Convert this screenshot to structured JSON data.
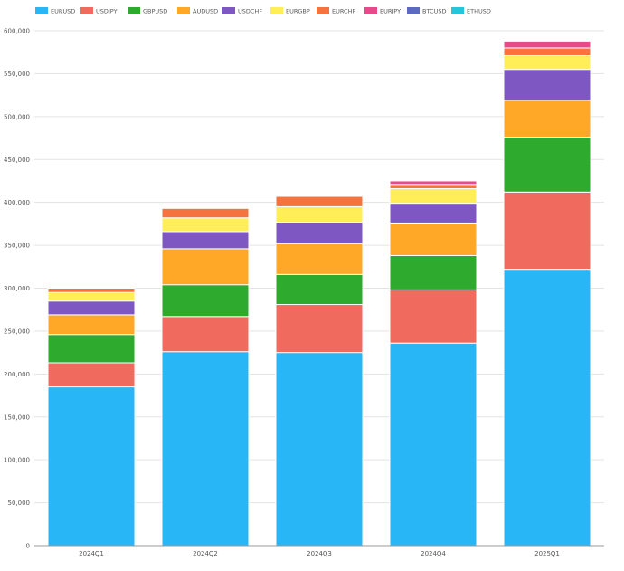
{
  "chart_data": {
    "type": "bar",
    "stacked": true,
    "categories": [
      "2024Q1",
      "2024Q2",
      "2024Q3",
      "2024Q4",
      "2025Q1"
    ],
    "series": [
      {
        "name": "EURUSD",
        "color": "#29b6f6",
        "values": [
          185000,
          226000,
          225000,
          236000,
          322000
        ]
      },
      {
        "name": "USDJPY",
        "color": "#f06b5d",
        "values": [
          28000,
          41000,
          56000,
          62000,
          90000
        ]
      },
      {
        "name": "GBPUSD",
        "color": "#2eaa2e",
        "values": [
          33000,
          37000,
          35000,
          40000,
          64000
        ]
      },
      {
        "name": "AUDUSD",
        "color": "#ffa726",
        "values": [
          23000,
          42000,
          36000,
          38000,
          43000
        ]
      },
      {
        "name": "USDCHF",
        "color": "#7e57c2",
        "values": [
          16000,
          20000,
          25000,
          23000,
          36000
        ]
      },
      {
        "name": "EURGBP",
        "color": "#ffee58",
        "values": [
          10000,
          16000,
          18000,
          17000,
          16000
        ]
      },
      {
        "name": "EURCHF",
        "color": "#f4733e",
        "values": [
          5000,
          11000,
          12000,
          5000,
          9000
        ]
      },
      {
        "name": "EURJPY",
        "color": "#e64a8a",
        "values": [
          0,
          0,
          0,
          4000,
          8000
        ]
      },
      {
        "name": "BTCUSD",
        "color": "#5c6bc0",
        "values": [
          0,
          0,
          0,
          0,
          0
        ]
      },
      {
        "name": "ETHUSD",
        "color": "#26c6da",
        "values": [
          0,
          0,
          0,
          0,
          0
        ]
      }
    ],
    "ylim": [
      0,
      600000
    ],
    "yticks": [
      0,
      50000,
      100000,
      150000,
      200000,
      250000,
      300000,
      350000,
      400000,
      450000,
      500000,
      550000,
      600000
    ],
    "ytick_labels": [
      "0",
      "50,000",
      "100,000",
      "150,000",
      "200,000",
      "250,000",
      "300,000",
      "350,000",
      "400,000",
      "450,000",
      "500,000",
      "550,000",
      "600,000"
    ],
    "grid": true,
    "legend": "top-left",
    "title": "",
    "xlabel": "",
    "ylabel": ""
  }
}
